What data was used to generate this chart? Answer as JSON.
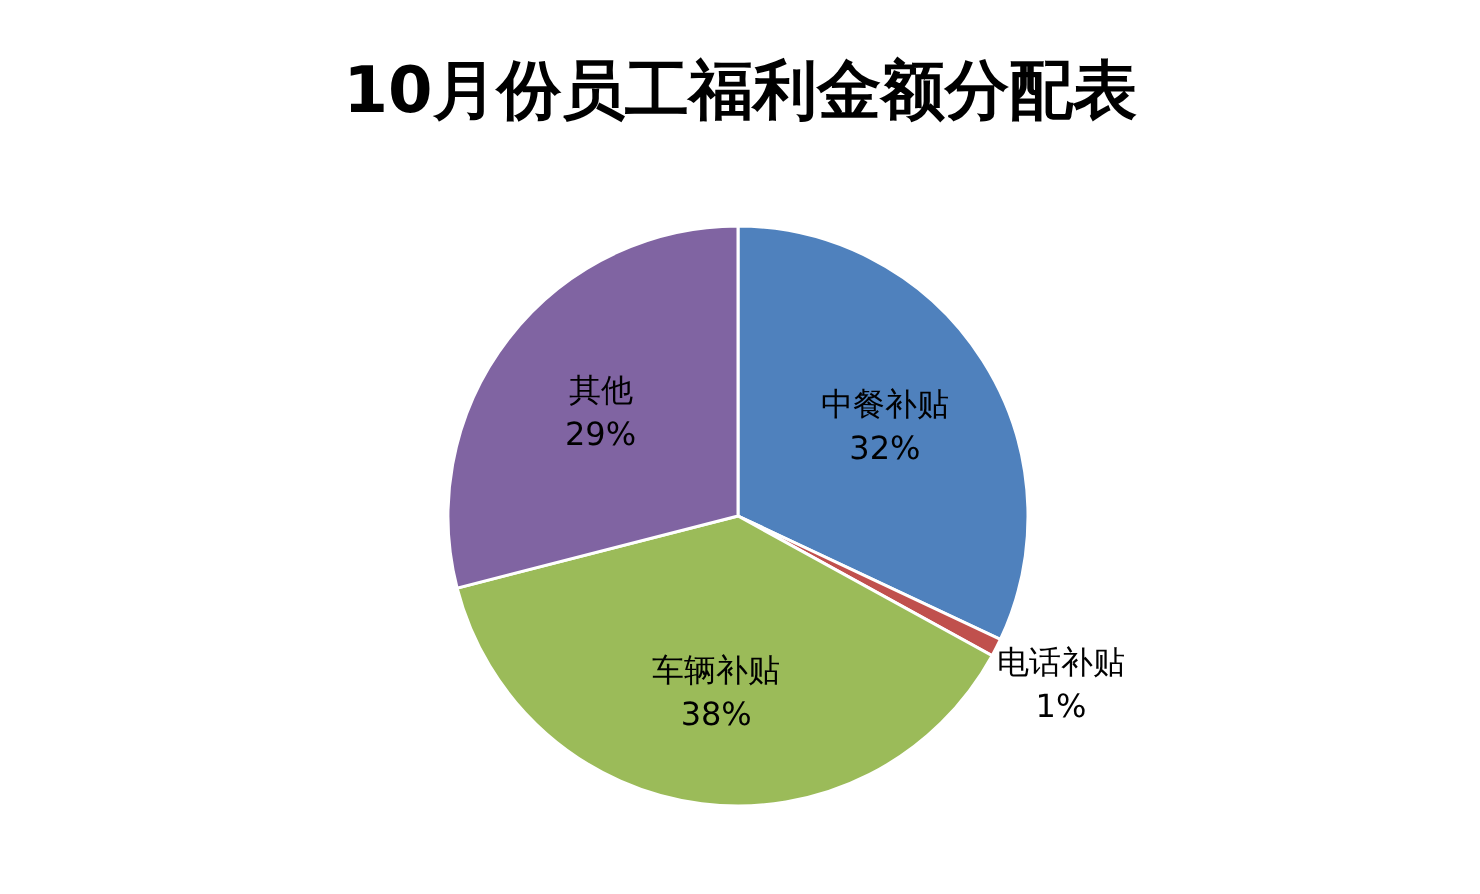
{
  "chart_data": {
    "type": "pie",
    "title": "10月份员工福利金额分配表",
    "categories": [
      "中餐补贴",
      "电话补贴",
      "车辆补贴",
      "其他"
    ],
    "values": [
      32,
      1,
      38,
      29
    ],
    "colors": [
      "#4f81bd",
      "#c0504d",
      "#9bbb59",
      "#8064a2"
    ],
    "value_labels": [
      "32%",
      "1%",
      "38%",
      "29%"
    ]
  }
}
